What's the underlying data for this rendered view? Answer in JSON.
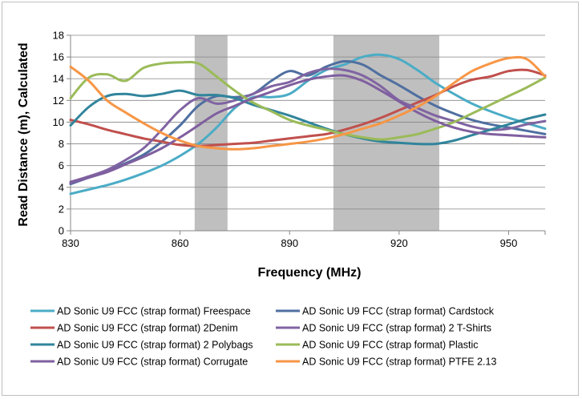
{
  "chart_data": {
    "type": "line",
    "title": "",
    "xlabel": "Frequency (MHz)",
    "ylabel": "Read Distance (m), Calculated",
    "xlim": [
      830,
      960
    ],
    "ylim": [
      0,
      18
    ],
    "x_ticks": [
      830,
      860,
      890,
      920,
      950
    ],
    "y_ticks": [
      0,
      2,
      4,
      6,
      8,
      10,
      12,
      14,
      16,
      18
    ],
    "grid": "horizontal",
    "legend_position": "bottom",
    "shaded_bands": [
      {
        "from": 864,
        "to": 873
      },
      {
        "from": 902,
        "to": 931
      }
    ],
    "series": [
      {
        "name": "AD Sonic U9 FCC (strap format) Freespace",
        "color": "#4bacc6",
        "x": [
          830,
          835,
          840,
          845,
          850,
          855,
          860,
          865,
          870,
          875,
          880,
          885,
          890,
          895,
          900,
          905,
          910,
          915,
          920,
          925,
          930,
          935,
          940,
          945,
          950,
          955,
          960
        ],
        "y": [
          3.4,
          3.8,
          4.2,
          4.7,
          5.3,
          6.0,
          6.9,
          8.0,
          9.5,
          11.3,
          12.3,
          12.3,
          12.6,
          13.8,
          14.8,
          15.3,
          16.0,
          16.2,
          15.8,
          14.8,
          13.6,
          12.6,
          11.7,
          11.0,
          10.4,
          9.9,
          9.4
        ]
      },
      {
        "name": "AD Sonic U9 FCC (strap format) Cardstock",
        "color": "#4f6fa0",
        "x": [
          830,
          835,
          840,
          845,
          850,
          855,
          860,
          865,
          870,
          875,
          880,
          885,
          890,
          895,
          900,
          905,
          910,
          915,
          920,
          925,
          930,
          935,
          940,
          945,
          950,
          955,
          960
        ],
        "y": [
          4.3,
          4.9,
          5.5,
          6.2,
          7.0,
          8.2,
          9.7,
          11.5,
          12.4,
          12.3,
          12.6,
          13.8,
          14.7,
          14.3,
          15.1,
          15.6,
          15.3,
          14.3,
          13.4,
          12.4,
          11.5,
          10.8,
          10.2,
          9.8,
          9.5,
          9.2,
          8.9
        ]
      },
      {
        "name": "AD Sonic U9 FCC (strap format) 2Denim",
        "color": "#c0504d",
        "x": [
          830,
          835,
          840,
          845,
          850,
          855,
          860,
          865,
          870,
          875,
          880,
          885,
          890,
          895,
          900,
          905,
          910,
          915,
          920,
          925,
          930,
          935,
          940,
          945,
          950,
          955,
          960
        ],
        "y": [
          10.2,
          9.8,
          9.3,
          8.9,
          8.5,
          8.2,
          7.9,
          7.8,
          7.9,
          8.0,
          8.1,
          8.3,
          8.5,
          8.7,
          8.9,
          9.3,
          9.8,
          10.4,
          11.1,
          11.8,
          12.5,
          13.3,
          13.9,
          14.2,
          14.7,
          14.8,
          14.3
        ]
      },
      {
        "name": "AD Sonic U9 FCC (strap format) 2 T-Shirts",
        "color": "#8064a2",
        "x": [
          830,
          835,
          840,
          845,
          850,
          855,
          860,
          865,
          870,
          875,
          880,
          885,
          890,
          895,
          900,
          905,
          910,
          915,
          920,
          925,
          930,
          935,
          940,
          945,
          950,
          955,
          960
        ],
        "y": [
          4.5,
          5.0,
          5.6,
          6.5,
          7.6,
          9.3,
          11.1,
          12.2,
          11.7,
          12.0,
          12.6,
          13.3,
          13.7,
          14.5,
          14.9,
          14.8,
          14.3,
          13.3,
          12.0,
          11.3,
          10.6,
          10.1,
          9.6,
          9.3,
          9.4,
          9.8,
          10.1
        ]
      },
      {
        "name": "AD Sonic U9 FCC (strap format) 2 Polybags",
        "color": "#31859c",
        "x": [
          830,
          835,
          840,
          845,
          850,
          855,
          860,
          865,
          870,
          875,
          880,
          885,
          890,
          895,
          900,
          905,
          910,
          915,
          920,
          925,
          930,
          935,
          940,
          945,
          950,
          955,
          960
        ],
        "y": [
          9.7,
          11.4,
          12.4,
          12.6,
          12.4,
          12.6,
          12.9,
          12.5,
          12.5,
          12.2,
          11.6,
          11.1,
          10.6,
          10.0,
          9.4,
          8.9,
          8.5,
          8.2,
          8.1,
          8.0,
          8.0,
          8.3,
          8.8,
          9.3,
          9.8,
          10.3,
          10.7
        ]
      },
      {
        "name": "AD Sonic U9 FCC (strap format) Plastic",
        "color": "#9bbb59",
        "x": [
          830,
          835,
          840,
          845,
          850,
          855,
          860,
          865,
          870,
          875,
          880,
          885,
          890,
          895,
          900,
          905,
          910,
          915,
          920,
          925,
          930,
          935,
          940,
          945,
          950,
          955,
          960
        ],
        "y": [
          12.2,
          14.1,
          14.4,
          13.8,
          15.0,
          15.4,
          15.5,
          15.4,
          14.2,
          12.9,
          11.8,
          11.0,
          10.2,
          9.7,
          9.3,
          8.9,
          8.6,
          8.4,
          8.6,
          8.9,
          9.4,
          10.0,
          10.8,
          11.6,
          12.4,
          13.2,
          14.1
        ]
      },
      {
        "name": "AD Sonic U9 FCC (strap format) Corrugate",
        "color": "#7f5f9f",
        "x": [
          830,
          835,
          840,
          845,
          850,
          855,
          860,
          865,
          870,
          875,
          880,
          885,
          890,
          895,
          900,
          905,
          910,
          915,
          920,
          925,
          930,
          935,
          940,
          945,
          950,
          955,
          960
        ],
        "y": [
          4.4,
          4.9,
          5.4,
          6.1,
          6.8,
          7.6,
          8.6,
          9.7,
          10.8,
          11.5,
          12.2,
          12.8,
          13.4,
          13.9,
          14.2,
          14.3,
          13.8,
          12.9,
          11.9,
          10.9,
          10.1,
          9.5,
          9.1,
          8.9,
          8.8,
          8.7,
          8.6
        ]
      },
      {
        "name": "AD Sonic U9 FCC (strap format) PTFE 2.13",
        "color": "#f79646",
        "x": [
          830,
          835,
          840,
          845,
          850,
          855,
          860,
          865,
          870,
          875,
          880,
          885,
          890,
          895,
          900,
          905,
          910,
          915,
          920,
          925,
          930,
          935,
          940,
          945,
          950,
          955,
          960
        ],
        "y": [
          15.1,
          13.8,
          12.0,
          10.9,
          9.9,
          9.0,
          8.3,
          7.8,
          7.6,
          7.5,
          7.6,
          7.8,
          8.0,
          8.2,
          8.5,
          8.9,
          9.4,
          9.9,
          10.6,
          11.4,
          12.4,
          13.6,
          14.7,
          15.4,
          15.9,
          15.8,
          14.2
        ]
      }
    ]
  }
}
